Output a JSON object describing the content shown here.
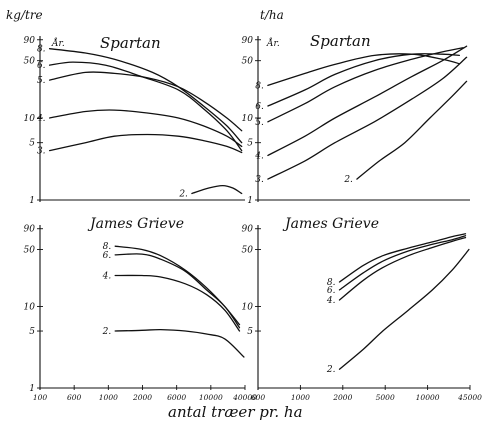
{
  "chart_data": [
    {
      "type": "line",
      "title": "Spartan",
      "unit_label": "kg/tre",
      "age_label": "År.",
      "y_scale": "log",
      "x_scale": "log",
      "ylim": [
        1,
        100
      ],
      "xlim": [
        400,
        5000
      ],
      "yticks": [
        "90",
        "50",
        "10",
        "5",
        "1"
      ],
      "series": [
        {
          "name": "8.",
          "x": [
            450,
            700,
            1000,
            1600,
            2200,
            3000,
            4000,
            4800
          ],
          "values": [
            70,
            62,
            52,
            36,
            24,
            14,
            8,
            5
          ]
        },
        {
          "name": "6.",
          "x": [
            450,
            600,
            900,
            1400,
            2200,
            3000,
            4000,
            4800
          ],
          "values": [
            44,
            48,
            44,
            32,
            22,
            13,
            7,
            4
          ]
        },
        {
          "name": "5.",
          "x": [
            450,
            700,
            1000,
            1500,
            2200,
            3000,
            4000,
            4800
          ],
          "values": [
            29,
            36,
            35,
            31,
            24,
            16,
            10,
            7
          ]
        },
        {
          "name": "4.",
          "x": [
            450,
            700,
            1000,
            1500,
            2200,
            3000,
            4000,
            4800
          ],
          "values": [
            10,
            12,
            12.5,
            11.5,
            10,
            8,
            6,
            4.5
          ]
        },
        {
          "name": "3.",
          "x": [
            450,
            700,
            1000,
            1500,
            2200,
            3000,
            4000,
            4800
          ],
          "values": [
            4,
            5,
            6,
            6.3,
            6,
            5.3,
            4.5,
            3.8
          ]
        },
        {
          "name": "2.",
          "x": [
            2600,
            3200,
            3800,
            4300,
            4800
          ],
          "values": [
            1.2,
            1.4,
            1.5,
            1.4,
            1.2
          ]
        }
      ]
    },
    {
      "type": "line",
      "title": "Spartan",
      "unit_label": "t/ha",
      "age_label": "År.",
      "y_scale": "log",
      "x_scale": "log",
      "ylim": [
        1,
        100
      ],
      "xlim": [
        400,
        5000
      ],
      "yticks": [
        "90",
        "50",
        "10",
        "5",
        "1"
      ],
      "series": [
        {
          "name": "8.",
          "x": [
            450,
            700,
            1000,
            1600,
            2500,
            3600,
            4400
          ],
          "values": [
            25,
            35,
            45,
            58,
            60,
            52,
            46
          ]
        },
        {
          "name": "6.",
          "x": [
            450,
            700,
            1000,
            1600,
            2500,
            3600,
            4400
          ],
          "values": [
            14,
            22,
            34,
            50,
            60,
            60,
            58
          ]
        },
        {
          "name": "5.",
          "x": [
            450,
            700,
            1000,
            1600,
            2500,
            3600,
            4600
          ],
          "values": [
            9,
            15,
            24,
            38,
            52,
            64,
            72
          ]
        },
        {
          "name": "4.",
          "x": [
            450,
            700,
            1000,
            1600,
            2500,
            3600,
            4800
          ],
          "values": [
            3.5,
            6,
            10,
            18,
            32,
            50,
            75
          ]
        },
        {
          "name": "3.",
          "x": [
            450,
            700,
            1000,
            1600,
            2500,
            3600,
            4800
          ],
          "values": [
            1.8,
            3,
            5,
            9,
            17,
            30,
            55
          ]
        },
        {
          "name": "2.",
          "x": [
            1300,
            1700,
            2300,
            3100,
            4000,
            4800
          ],
          "values": [
            1.8,
            3,
            5,
            10,
            18,
            28
          ]
        }
      ]
    },
    {
      "type": "line",
      "title": "James Grieve",
      "unit_label": "",
      "y_scale": "log",
      "x_scale": "log",
      "ylim": [
        1,
        100
      ],
      "xlim": [
        100,
        5000
      ],
      "xticks": [
        "100",
        "600",
        "1000",
        "2000",
        "6000",
        "10000",
        "40000"
      ],
      "yticks": [
        "90",
        "50",
        "10",
        "5",
        "1"
      ],
      "xlabel": "antal træer pr. ha",
      "series": [
        {
          "name": "8.",
          "x": [
            420,
            700,
            1000,
            1600,
            2400,
            3400,
            4500
          ],
          "values": [
            55,
            50,
            42,
            28,
            17,
            10,
            6
          ]
        },
        {
          "name": "6.",
          "x": [
            420,
            700,
            1000,
            1600,
            2400,
            3400,
            4500
          ],
          "values": [
            43,
            44,
            38,
            27,
            16,
            10,
            5.5
          ]
        },
        {
          "name": "4.",
          "x": [
            420,
            700,
            1000,
            1600,
            2400,
            3400,
            4500
          ],
          "values": [
            24,
            24,
            23,
            19,
            14,
            9,
            5
          ]
        },
        {
          "name": "2.",
          "x": [
            420,
            700,
            1000,
            1600,
            2400,
            3400,
            4900
          ],
          "values": [
            5,
            5.1,
            5.2,
            5,
            4.6,
            4,
            2.4
          ]
        }
      ]
    },
    {
      "type": "line",
      "title": "James Grieve",
      "unit_label": "",
      "y_scale": "log",
      "x_scale": "log",
      "ylim": [
        1,
        100
      ],
      "xlim": [
        100,
        5000
      ],
      "xticks": [
        "600",
        "1000",
        "2000",
        "5000",
        "10000",
        "45000"
      ],
      "yticks": [
        "90",
        "50",
        "10",
        "5"
      ],
      "series": [
        {
          "name": "8.",
          "x": [
            450,
            700,
            1000,
            1600,
            2500,
            3600,
            4600
          ],
          "values": [
            20,
            32,
            42,
            52,
            62,
            72,
            78
          ]
        },
        {
          "name": "6.",
          "x": [
            450,
            700,
            1000,
            1600,
            2500,
            3600,
            4600
          ],
          "values": [
            16,
            26,
            36,
            48,
            58,
            66,
            74
          ]
        },
        {
          "name": "4.",
          "x": [
            450,
            700,
            1000,
            1600,
            2500,
            3600,
            4600
          ],
          "values": [
            12,
            21,
            30,
            42,
            53,
            63,
            70
          ]
        },
        {
          "name": "2.",
          "x": [
            450,
            700,
            1000,
            1600,
            2500,
            3600,
            4900
          ],
          "values": [
            1.7,
            3,
            5,
            9,
            16,
            28,
            50
          ]
        }
      ]
    }
  ]
}
